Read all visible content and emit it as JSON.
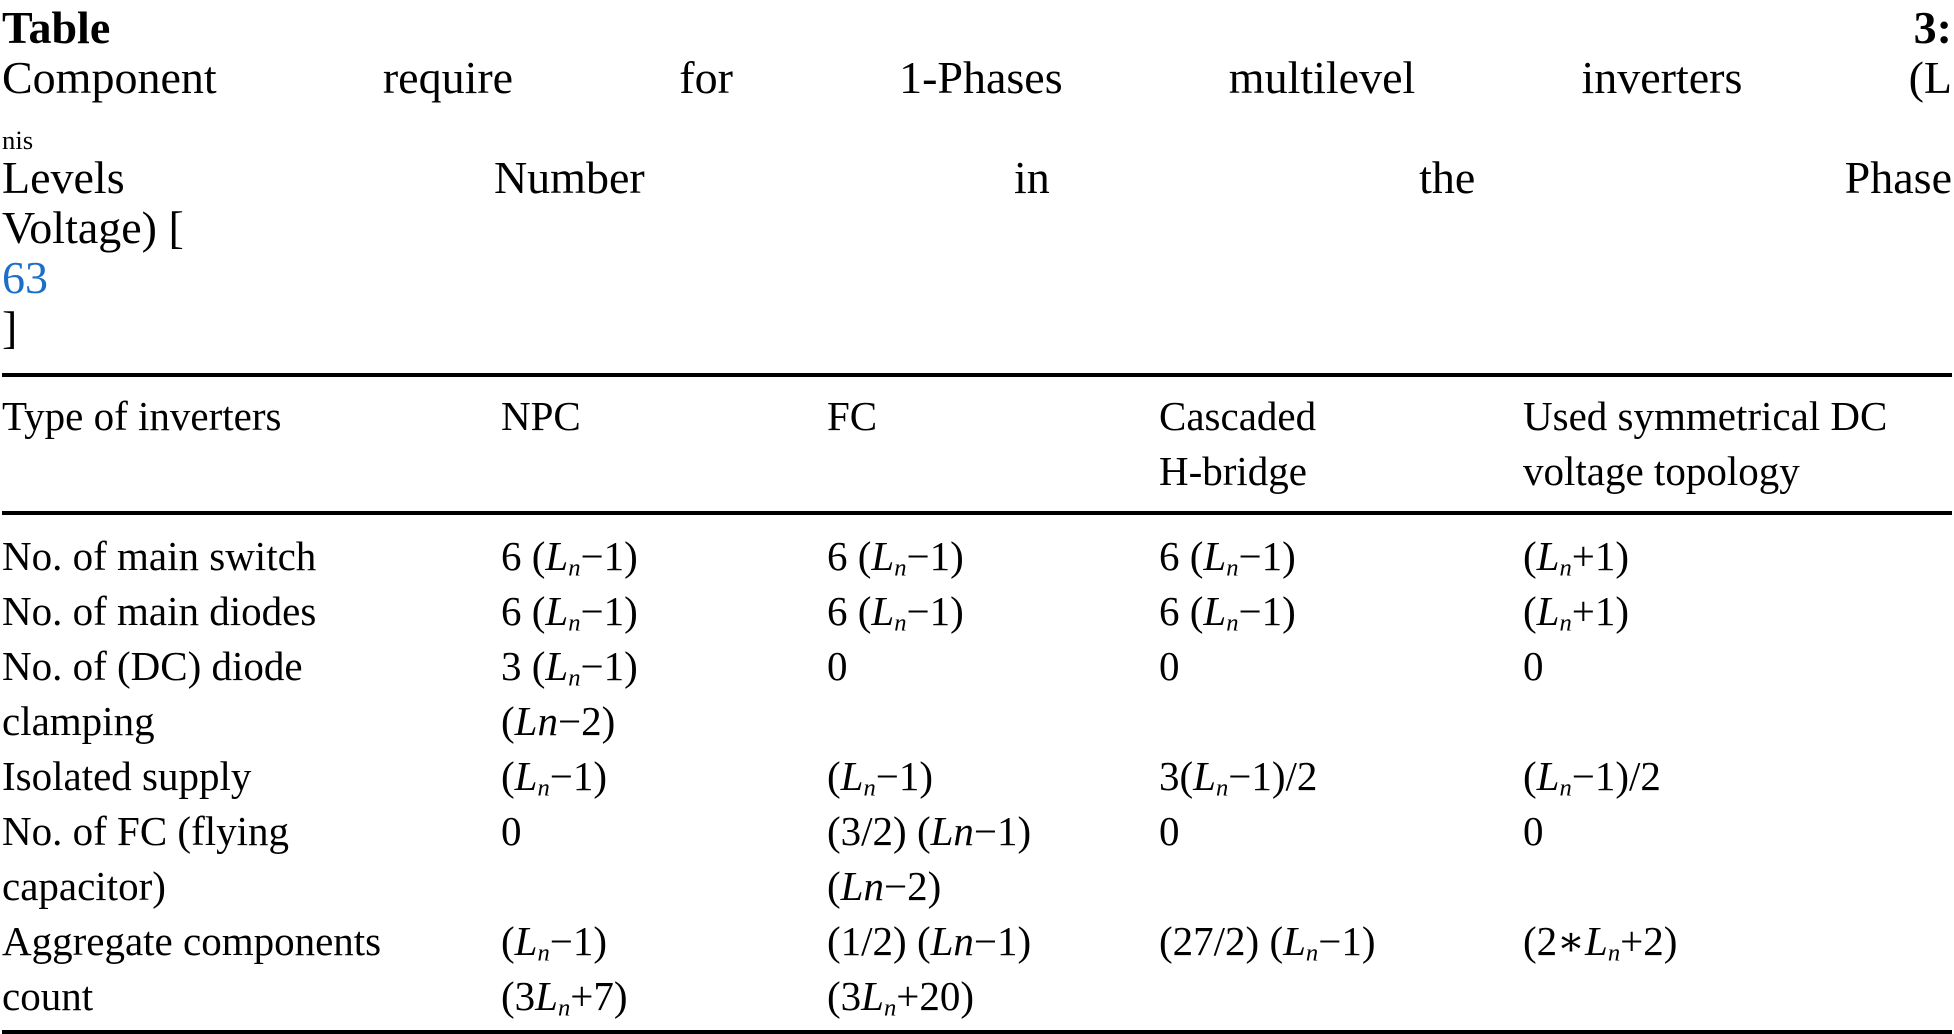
{
  "page": {
    "background_color": "#ffffff",
    "text_color": "#000000",
    "link_color": "#1c6fc8",
    "rule_color": "#000000"
  },
  "caption": {
    "line1": [
      {
        "b": "Table 3:"
      },
      " Component require for 1-Phases multilevel inverters (L",
      {
        "u": "nis"
      },
      " Levels Number in the Phase"
    ],
    "line2": [
      "Voltage) [",
      {
        "a": "63"
      },
      "]"
    ],
    "citation_number": "63"
  },
  "table": {
    "headers": [
      [
        [
          "Type of inverters"
        ]
      ],
      [
        [
          "NPC"
        ]
      ],
      [
        [
          "FC"
        ]
      ],
      [
        [
          "Cascaded"
        ],
        [
          "H-bridge"
        ]
      ],
      [
        [
          "Used symmetrical DC"
        ],
        [
          "voltage topology"
        ]
      ]
    ],
    "rows": [
      {
        "cells": [
          [
            [
              "No. of main switch"
            ]
          ],
          [
            [
              "6 (",
              {
                "i": "L"
              },
              {
                "s": "n"
              },
              "−1)"
            ]
          ],
          [
            [
              "6 (",
              {
                "i": "L"
              },
              {
                "s": "n"
              },
              "−1)"
            ]
          ],
          [
            [
              "6 (",
              {
                "i": "L"
              },
              {
                "s": "n"
              },
              "−1)"
            ]
          ],
          [
            [
              "(",
              {
                "i": "L"
              },
              {
                "s": "n"
              },
              "+1)"
            ]
          ]
        ]
      },
      {
        "cells": [
          [
            [
              "No. of main diodes"
            ]
          ],
          [
            [
              "6 (",
              {
                "i": "L"
              },
              {
                "s": "n"
              },
              "−1)"
            ]
          ],
          [
            [
              "6 (",
              {
                "i": "L"
              },
              {
                "s": "n"
              },
              "−1)"
            ]
          ],
          [
            [
              "6 (",
              {
                "i": "L"
              },
              {
                "s": "n"
              },
              "−1)"
            ]
          ],
          [
            [
              "(",
              {
                "i": "L"
              },
              {
                "s": "n"
              },
              "+1)"
            ]
          ]
        ]
      },
      {
        "cells": [
          [
            [
              "No. of (DC) diode"
            ],
            [
              "clamping"
            ]
          ],
          [
            [
              "3 (",
              {
                "i": "L"
              },
              {
                "s": "n"
              },
              "−1)"
            ],
            [
              "(",
              {
                "i": "Ln"
              },
              "−2)"
            ]
          ],
          [
            [
              "0"
            ]
          ],
          [
            [
              "0"
            ]
          ],
          [
            [
              "0"
            ]
          ]
        ]
      },
      {
        "cells": [
          [
            [
              "Isolated supply"
            ]
          ],
          [
            [
              "(",
              {
                "i": "L"
              },
              {
                "s": "n"
              },
              "−1)"
            ]
          ],
          [
            [
              "(",
              {
                "i": "L"
              },
              {
                "s": "n"
              },
              "−1)"
            ]
          ],
          [
            [
              "3(",
              {
                "i": "L"
              },
              {
                "s": "n"
              },
              "−1)/2"
            ]
          ],
          [
            [
              "(",
              {
                "i": "L"
              },
              {
                "s": "n"
              },
              "−1)/2"
            ]
          ]
        ]
      },
      {
        "cells": [
          [
            [
              "No. of FC (flying"
            ],
            [
              "capacitor)"
            ]
          ],
          [
            [
              "0"
            ]
          ],
          [
            [
              "(3/2) (",
              {
                "i": "Ln"
              },
              "−1)"
            ],
            [
              "(",
              {
                "i": "Ln"
              },
              "−2)"
            ]
          ],
          [
            [
              "0"
            ]
          ],
          [
            [
              "0"
            ]
          ]
        ]
      },
      {
        "cells": [
          [
            [
              "Aggregate components"
            ],
            [
              "count"
            ]
          ],
          [
            [
              "(",
              {
                "i": "L"
              },
              {
                "s": "n"
              },
              "−1)"
            ],
            [
              "(3",
              {
                "i": "L"
              },
              {
                "s": "n"
              },
              "+7)"
            ]
          ],
          [
            [
              "(1/2) (",
              {
                "i": "Ln"
              },
              "−1)"
            ],
            [
              "(3",
              {
                "i": "L"
              },
              {
                "s": "n"
              },
              "+20)"
            ]
          ],
          [
            [
              "(27/2) (",
              {
                "i": "L"
              },
              {
                "s": "n"
              },
              "−1)"
            ]
          ],
          [
            [
              "(2∗",
              {
                "i": "L"
              },
              {
                "s": "n"
              },
              "+2)"
            ]
          ]
        ]
      }
    ]
  }
}
